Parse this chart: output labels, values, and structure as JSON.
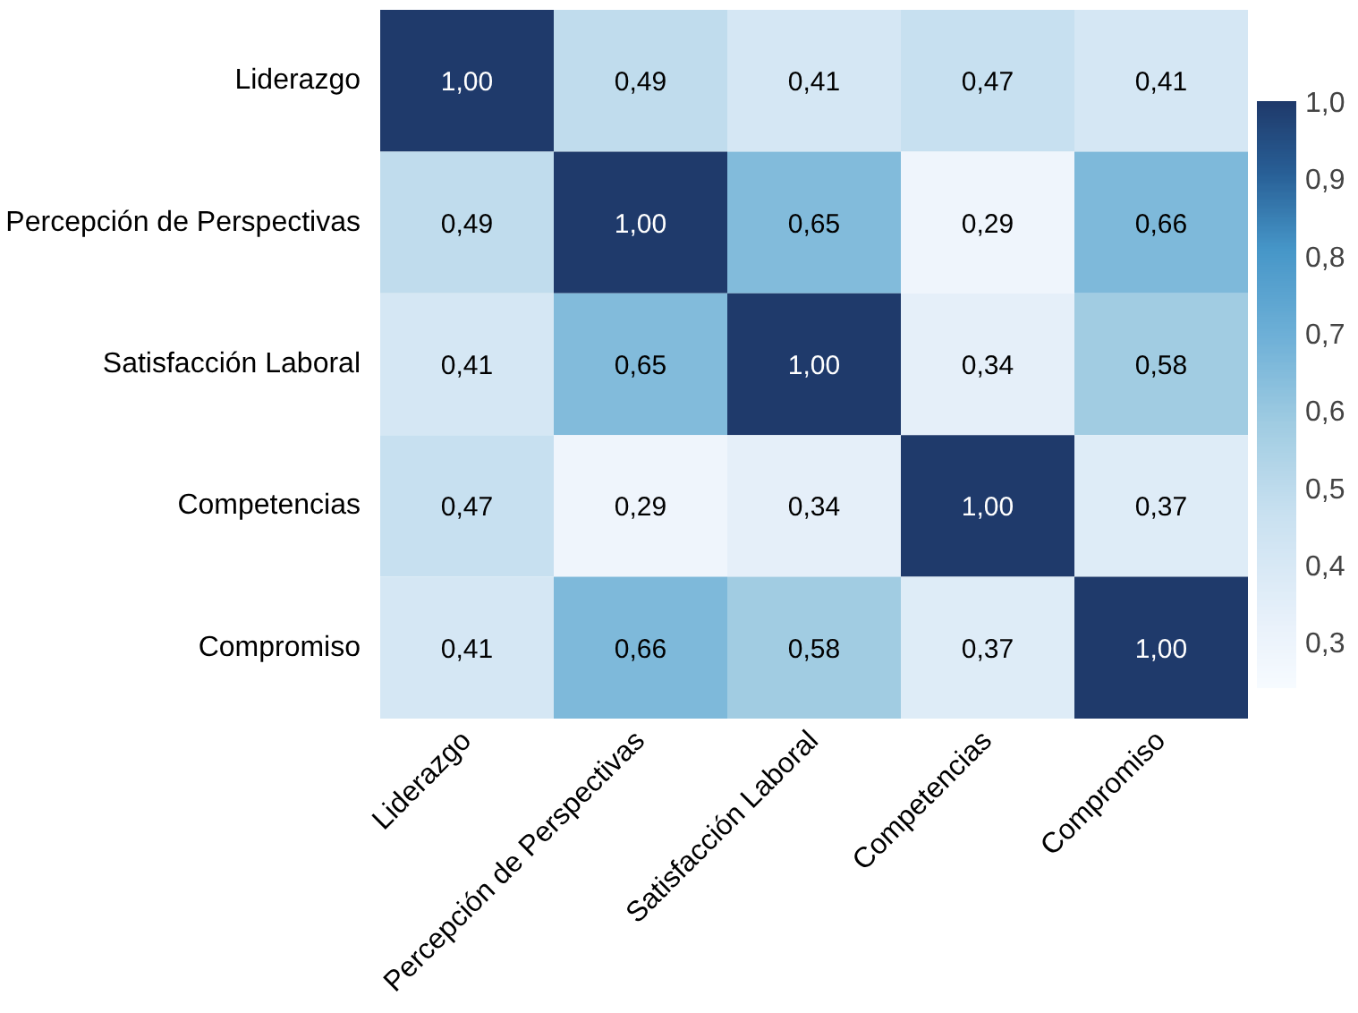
{
  "chart_data": {
    "type": "heatmap",
    "categories": [
      "Liderazgo",
      "Percepción de Perspectivas",
      "Satisfacción Laboral",
      "Competencias",
      "Compromiso"
    ],
    "y_categories": [
      "Liderazgo",
      "Percepción de Perspectivas",
      "Satisfacción Laboral",
      "Competencias",
      "Compromiso"
    ],
    "cells": [
      [
        1.0,
        0.49,
        0.41,
        0.47,
        0.41
      ],
      [
        0.49,
        1.0,
        0.65,
        0.29,
        0.66
      ],
      [
        0.41,
        0.65,
        1.0,
        0.34,
        0.58
      ],
      [
        0.47,
        0.29,
        0.34,
        1.0,
        0.37
      ],
      [
        0.41,
        0.66,
        0.58,
        0.37,
        1.0
      ]
    ],
    "cell_labels": [
      [
        "1,00",
        "0,49",
        "0,41",
        "0,47",
        "0,41"
      ],
      [
        "0,49",
        "1,00",
        "0,65",
        "0,29",
        "0,66"
      ],
      [
        "0,41",
        "0,65",
        "1,00",
        "0,34",
        "0,58"
      ],
      [
        "0,47",
        "0,29",
        "0,34",
        "1,00",
        "0,37"
      ],
      [
        "0,41",
        "0,66",
        "0,58",
        "0,37",
        "1,00"
      ]
    ],
    "clim": [
      0.24,
      1.0
    ],
    "cticks": [
      {
        "value": 0.3,
        "label": "0,3"
      },
      {
        "value": 0.4,
        "label": "0,4"
      },
      {
        "value": 0.5,
        "label": "0,5"
      },
      {
        "value": 0.6,
        "label": "0,6"
      },
      {
        "value": 0.7,
        "label": "0,7"
      },
      {
        "value": 0.8,
        "label": "0,8"
      },
      {
        "value": 0.9,
        "label": "0,9"
      },
      {
        "value": 1.0,
        "label": "1,0"
      }
    ]
  }
}
